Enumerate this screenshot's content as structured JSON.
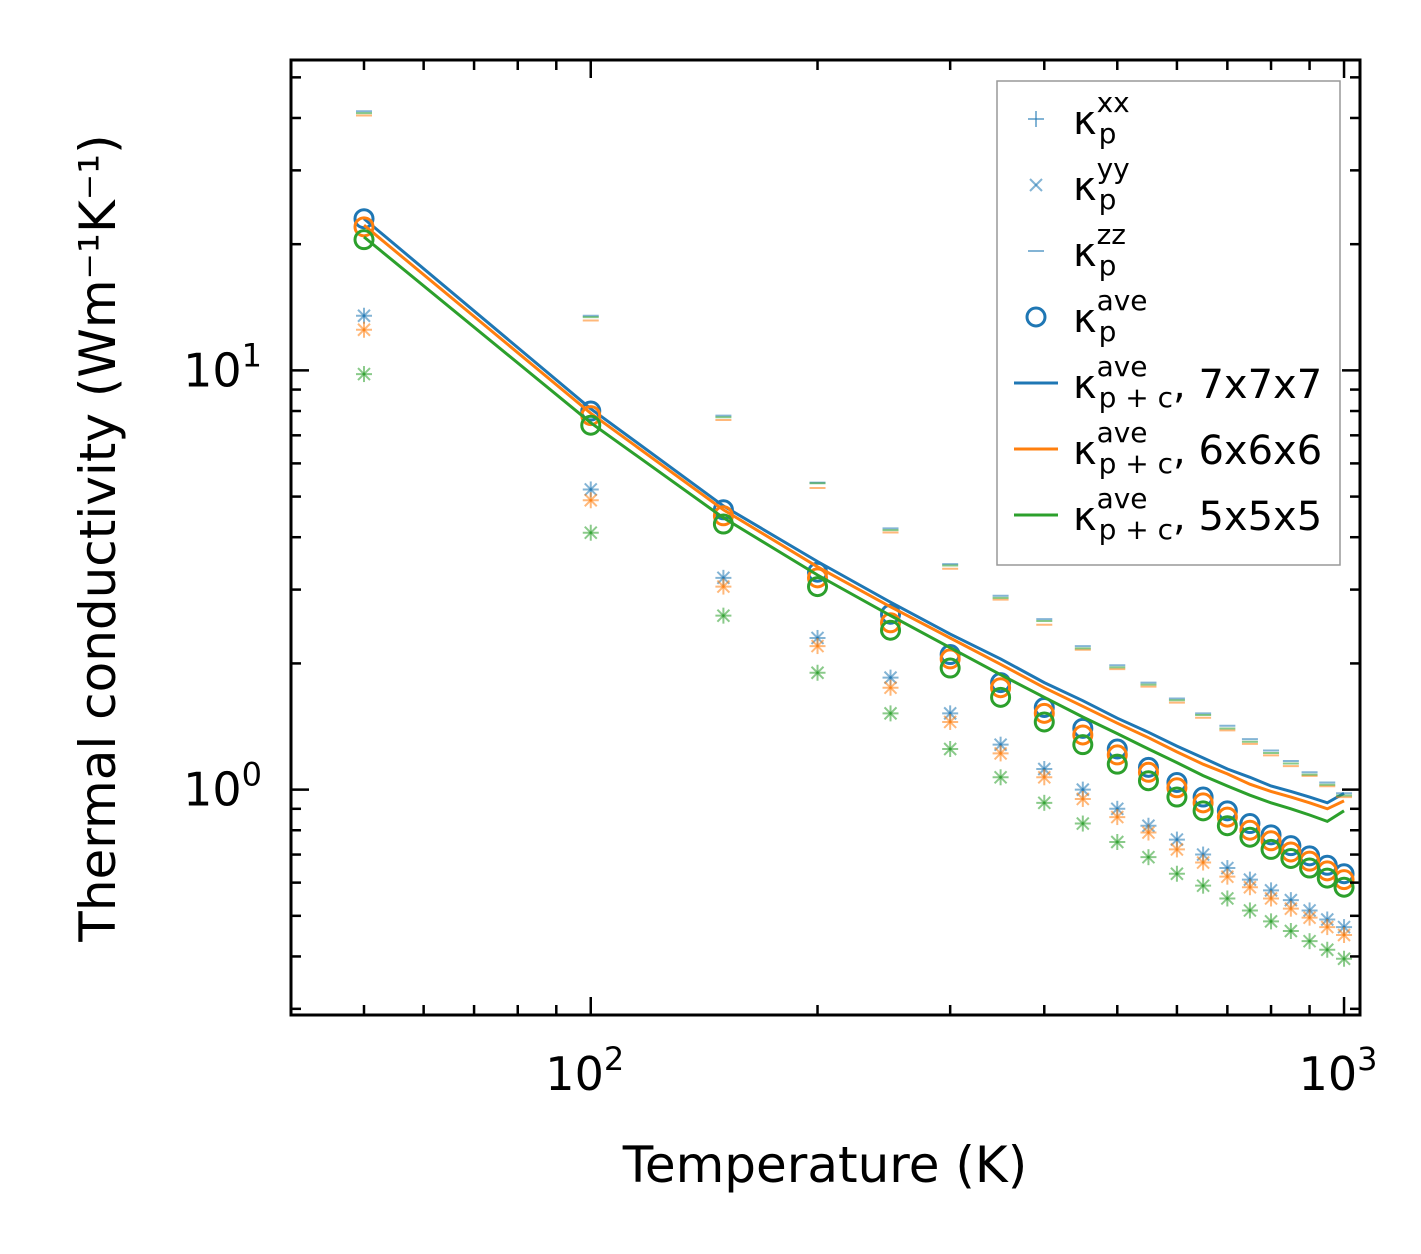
{
  "chart_data": {
    "type": "scatter",
    "title": "",
    "xlabel": "Temperature (K)",
    "ylabel": "Thermal conductivity (Wm⁻¹K⁻¹)",
    "xscale": "log",
    "yscale": "log",
    "xlim": [
      40,
      1050
    ],
    "ylim": [
      0.29,
      55
    ],
    "x_ticks": [
      {
        "value": 100,
        "base": "10",
        "exp": "2"
      },
      {
        "value": 1000,
        "base": "10",
        "exp": "3"
      }
    ],
    "y_ticks": [
      {
        "value": 1,
        "base": "10",
        "exp": "0"
      },
      {
        "value": 10,
        "base": "10",
        "exp": "1"
      }
    ],
    "legend_position": "top-right",
    "legend": [
      {
        "symbol": "plus",
        "kappa": "κ",
        "sub": "p",
        "sup": "xx",
        "suffix": ""
      },
      {
        "symbol": "cross",
        "kappa": "κ",
        "sub": "p",
        "sup": "yy",
        "suffix": ""
      },
      {
        "symbol": "dash",
        "kappa": "κ",
        "sub": "p",
        "sup": "zz",
        "suffix": ""
      },
      {
        "symbol": "circle",
        "kappa": "κ",
        "sub": "p",
        "sup": "ave",
        "suffix": ""
      },
      {
        "symbol": "line",
        "color": "#1f77b4",
        "kappa": "κ",
        "sub": "p + c",
        "sup": "ave",
        "suffix": ", 7x7x7"
      },
      {
        "symbol": "line",
        "color": "#ff7f0e",
        "kappa": "κ",
        "sub": "p + c",
        "sup": "ave",
        "suffix": ", 6x6x6"
      },
      {
        "symbol": "line",
        "color": "#2ca02c",
        "kappa": "κ",
        "sub": "p + c",
        "sup": "ave",
        "suffix": ", 5x5x5"
      }
    ],
    "x": [
      50,
      100,
      150,
      200,
      250,
      300,
      350,
      400,
      450,
      500,
      550,
      600,
      650,
      700,
      750,
      800,
      850,
      900,
      950,
      1000
    ],
    "series": [
      {
        "name": "7x7x7",
        "color": "#1f77b4",
        "kp_xx": [
          13.5,
          5.2,
          3.2,
          2.3,
          1.85,
          1.52,
          1.28,
          1.12,
          1.0,
          0.9,
          0.82,
          0.76,
          0.7,
          0.65,
          0.61,
          0.575,
          0.545,
          0.515,
          0.49,
          0.47
        ],
        "kp_yy": [
          13.5,
          5.2,
          3.2,
          2.3,
          1.85,
          1.52,
          1.28,
          1.12,
          1.0,
          0.9,
          0.82,
          0.76,
          0.7,
          0.65,
          0.61,
          0.575,
          0.545,
          0.515,
          0.49,
          0.47
        ],
        "kp_zz": [
          41.5,
          13.5,
          7.8,
          5.4,
          4.2,
          3.45,
          2.9,
          2.55,
          2.2,
          1.98,
          1.8,
          1.65,
          1.52,
          1.42,
          1.32,
          1.24,
          1.17,
          1.1,
          1.04,
          0.98
        ],
        "kp_ave": [
          23.0,
          8.0,
          4.65,
          3.3,
          2.62,
          2.1,
          1.8,
          1.57,
          1.4,
          1.25,
          1.13,
          1.04,
          0.96,
          0.89,
          0.83,
          0.78,
          0.735,
          0.695,
          0.66,
          0.63
        ],
        "kpc_ave": [
          23.0,
          8.1,
          4.75,
          3.5,
          2.8,
          2.35,
          2.05,
          1.8,
          1.63,
          1.48,
          1.37,
          1.27,
          1.19,
          1.12,
          1.07,
          1.02,
          0.99,
          0.96,
          0.93,
          0.98
        ]
      },
      {
        "name": "6x6x6",
        "color": "#ff7f0e",
        "kp_xx": [
          12.5,
          4.9,
          3.05,
          2.2,
          1.75,
          1.45,
          1.22,
          1.07,
          0.95,
          0.86,
          0.79,
          0.72,
          0.67,
          0.62,
          0.585,
          0.55,
          0.52,
          0.495,
          0.47,
          0.45
        ],
        "kp_yy": [
          12.5,
          4.9,
          3.05,
          2.2,
          1.75,
          1.45,
          1.22,
          1.07,
          0.95,
          0.86,
          0.79,
          0.72,
          0.67,
          0.62,
          0.585,
          0.55,
          0.52,
          0.495,
          0.47,
          0.45
        ],
        "kp_zz": [
          41.0,
          13.3,
          7.7,
          5.3,
          4.15,
          3.4,
          2.87,
          2.5,
          2.18,
          1.96,
          1.78,
          1.63,
          1.5,
          1.4,
          1.3,
          1.22,
          1.15,
          1.09,
          1.03,
          0.97
        ],
        "kp_ave": [
          22.0,
          7.8,
          4.5,
          3.2,
          2.5,
          2.05,
          1.75,
          1.52,
          1.35,
          1.21,
          1.1,
          1.01,
          0.93,
          0.86,
          0.8,
          0.755,
          0.71,
          0.675,
          0.64,
          0.61
        ],
        "kpc_ave": [
          22.2,
          7.9,
          4.65,
          3.4,
          2.73,
          2.3,
          1.99,
          1.75,
          1.58,
          1.44,
          1.33,
          1.23,
          1.15,
          1.09,
          1.03,
          0.99,
          0.96,
          0.93,
          0.9,
          0.94
        ]
      },
      {
        "name": "5x5x5",
        "color": "#2ca02c",
        "kp_xx": [
          9.8,
          4.1,
          2.6,
          1.9,
          1.52,
          1.25,
          1.07,
          0.93,
          0.83,
          0.75,
          0.69,
          0.63,
          0.59,
          0.55,
          0.515,
          0.485,
          0.46,
          0.435,
          0.415,
          0.395
        ],
        "kp_yy": [
          9.8,
          4.1,
          2.6,
          1.9,
          1.52,
          1.25,
          1.07,
          0.93,
          0.83,
          0.75,
          0.69,
          0.63,
          0.59,
          0.55,
          0.515,
          0.485,
          0.46,
          0.435,
          0.415,
          0.395
        ],
        "kp_zz": [
          42.0,
          13.7,
          7.9,
          5.5,
          4.25,
          3.5,
          2.93,
          2.58,
          2.22,
          2.0,
          1.82,
          1.67,
          1.54,
          1.43,
          1.33,
          1.25,
          1.18,
          1.11,
          1.05,
          0.99
        ],
        "kp_ave": [
          20.5,
          7.4,
          4.3,
          3.05,
          2.4,
          1.95,
          1.66,
          1.45,
          1.28,
          1.15,
          1.05,
          0.96,
          0.89,
          0.82,
          0.77,
          0.72,
          0.685,
          0.65,
          0.615,
          0.585
        ],
        "kpc_ave": [
          20.8,
          7.5,
          4.45,
          3.25,
          2.6,
          2.18,
          1.88,
          1.66,
          1.49,
          1.36,
          1.25,
          1.16,
          1.08,
          1.02,
          0.97,
          0.93,
          0.9,
          0.87,
          0.84,
          0.89
        ]
      }
    ]
  }
}
